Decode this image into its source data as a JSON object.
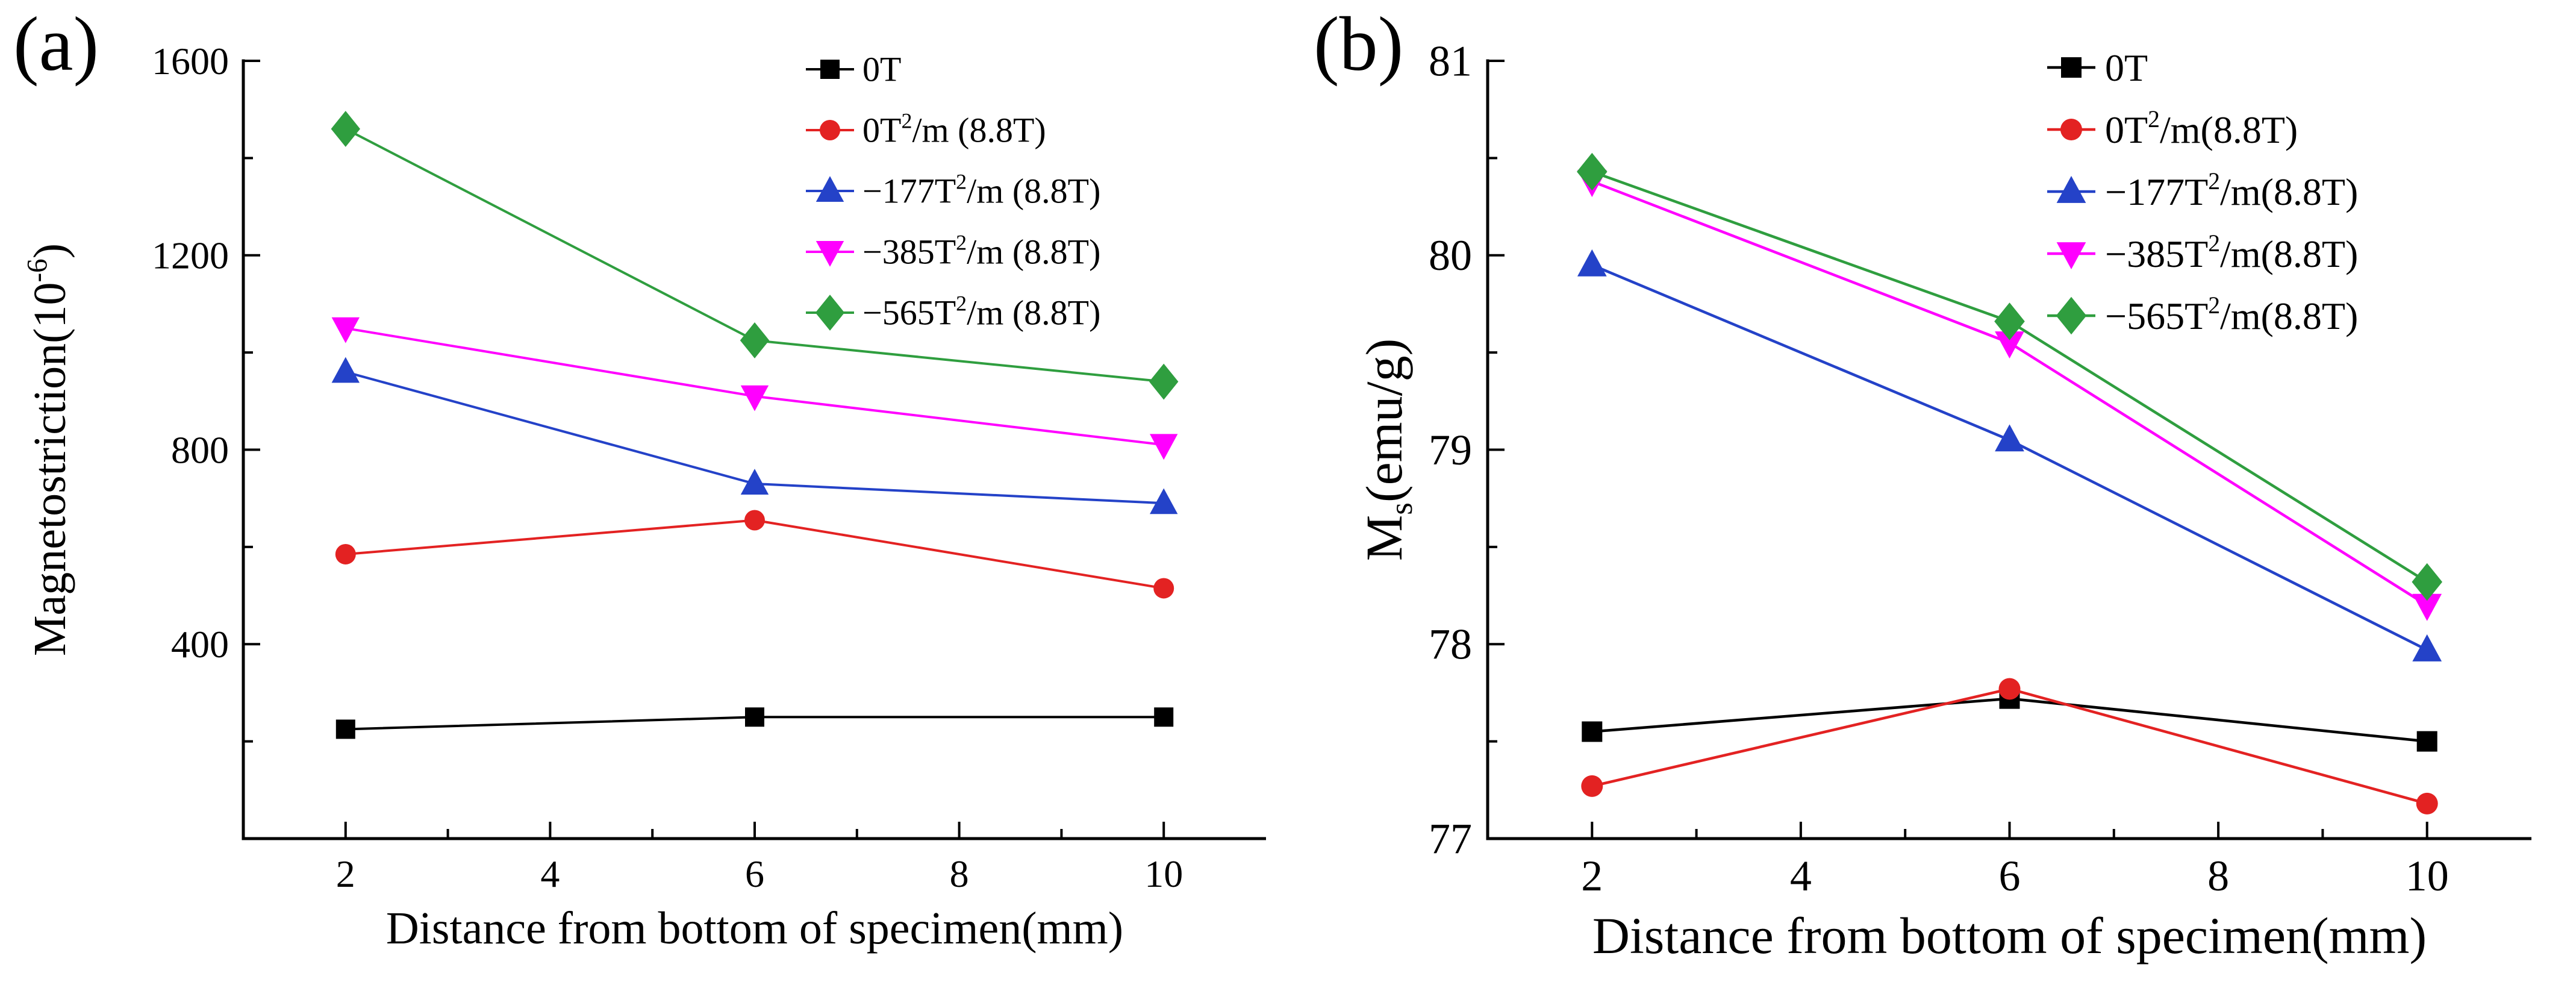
{
  "panels": [
    {
      "label": "(a)"
    },
    {
      "label": "(b)"
    }
  ],
  "chart_data": [
    {
      "type": "line",
      "panel": "(a)",
      "title": "",
      "xlabel": "Distance from bottom of specimen(mm)",
      "ylabel": "Magnetostriction(10^{-6})",
      "x": [
        2,
        6,
        10
      ],
      "xlim": [
        1,
        11
      ],
      "ylim": [
        0,
        1600
      ],
      "xticks": [
        2,
        4,
        6,
        8,
        10
      ],
      "yticks": [
        400,
        800,
        1200,
        1600
      ],
      "xminor": [
        3,
        5,
        7,
        9
      ],
      "yminor": [
        200,
        600,
        1000,
        1400
      ],
      "grid": false,
      "legend_position": "top-right",
      "axis_color": "#000000",
      "series": [
        {
          "name": "0T",
          "marker": "square",
          "color": "#000000",
          "values": [
            225,
            250,
            250
          ]
        },
        {
          "name": "0T^{2}/m (8.8T)",
          "marker": "circle",
          "color": "#e32222",
          "values": [
            585,
            655,
            515
          ]
        },
        {
          "name": "−177T^{2}/m (8.8T)",
          "marker": "triangle-up",
          "color": "#2442c8",
          "values": [
            960,
            730,
            690
          ]
        },
        {
          "name": "−385T^{2}/m (8.8T)",
          "marker": "triangle-down",
          "color": "#ff00ff",
          "values": [
            1050,
            910,
            810
          ]
        },
        {
          "name": "−565T^{2}/m (8.8T)",
          "marker": "diamond",
          "color": "#2f9e3f",
          "values": [
            1460,
            1025,
            940
          ]
        }
      ]
    },
    {
      "type": "line",
      "panel": "(b)",
      "title": "",
      "xlabel": "Distance from bottom of specimen(mm)",
      "ylabel": "M_{s}(emu/g)",
      "x": [
        2,
        6,
        10
      ],
      "xlim": [
        1,
        11
      ],
      "ylim": [
        77,
        81
      ],
      "xticks": [
        2,
        4,
        6,
        8,
        10
      ],
      "yticks": [
        77,
        78,
        79,
        80,
        81
      ],
      "xminor": [
        3,
        5,
        7,
        9
      ],
      "yminor": [
        77.5,
        78.5,
        79.5,
        80.5
      ],
      "grid": false,
      "legend_position": "top-right",
      "axis_color": "#000000",
      "series": [
        {
          "name": "0T",
          "marker": "square",
          "color": "#000000",
          "values": [
            77.55,
            77.72,
            77.5
          ]
        },
        {
          "name": "0T^{2}/m(8.8T)",
          "marker": "circle",
          "color": "#e32222",
          "values": [
            77.27,
            77.77,
            77.18
          ]
        },
        {
          "name": "−177T^{2}/m(8.8T)",
          "marker": "triangle-up",
          "color": "#2442c8",
          "values": [
            79.95,
            79.05,
            77.97
          ]
        },
        {
          "name": "−385T^{2}/m(8.8T)",
          "marker": "triangle-down",
          "color": "#ff00ff",
          "values": [
            80.38,
            79.55,
            78.2
          ]
        },
        {
          "name": "−565T^{2}/m(8.8T)",
          "marker": "diamond",
          "color": "#2f9e3f",
          "values": [
            80.43,
            79.66,
            78.32
          ]
        }
      ]
    }
  ]
}
